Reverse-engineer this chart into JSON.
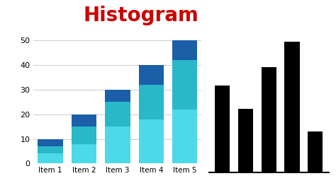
{
  "categories": [
    "Item 1",
    "Item 2",
    "Item 3",
    "Item 4",
    "Item 5"
  ],
  "bottom_values": [
    4,
    8,
    15,
    18,
    22
  ],
  "mid_values": [
    3,
    7,
    10,
    14,
    20
  ],
  "top_values": [
    3,
    5,
    5,
    8,
    8
  ],
  "total_values": [
    10,
    20,
    30,
    40,
    50
  ],
  "color_bottom": "#4DD9E8",
  "color_mid": "#29B8C8",
  "color_top": "#1A5FA8",
  "title": "Histogram",
  "title_color": "#CC0000",
  "title_fontsize": 20,
  "ylim": [
    0,
    55
  ],
  "yticks": [
    0,
    10,
    20,
    30,
    40,
    50
  ],
  "bg_color": "#ffffff",
  "axis_bg": "#ffffff",
  "grid_color": "#cccccc",
  "black_bars": [
    34,
    25,
    41,
    51,
    16
  ],
  "black_bar_width": 0.65,
  "black_baseline_thickness": 3
}
